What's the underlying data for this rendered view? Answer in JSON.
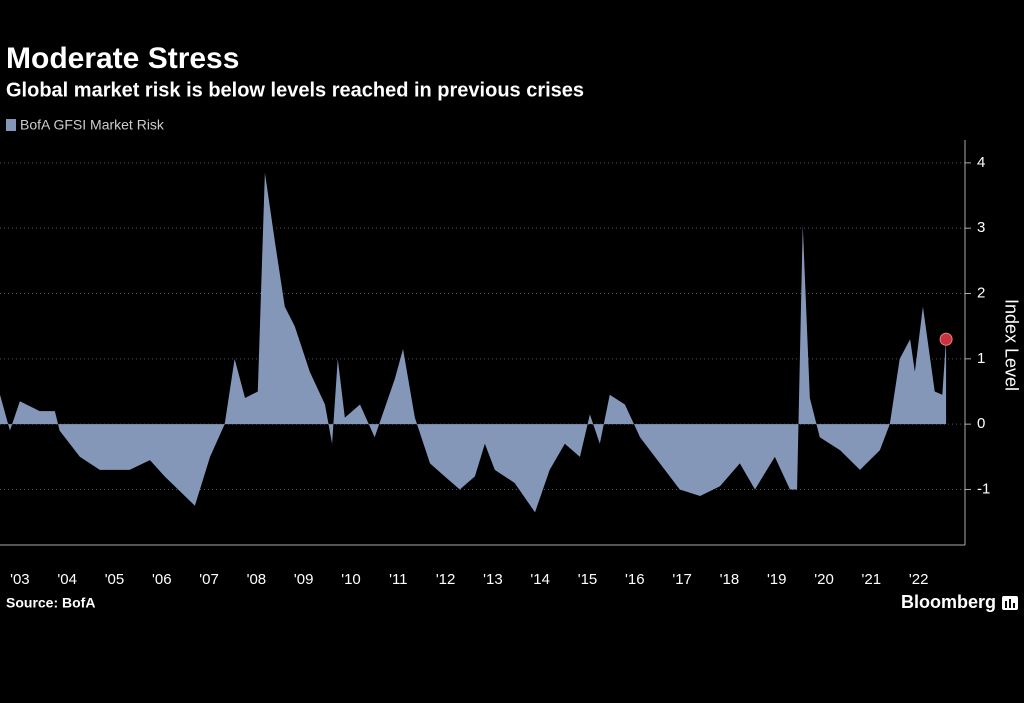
{
  "chart_data": {
    "type": "area",
    "title": "Moderate Stress",
    "subtitle": "Global market risk is below levels reached in previous crises",
    "y_label": "Index Level",
    "source": "Source: BofA",
    "brand": "Bloomberg",
    "legend": "top-left",
    "grid": true,
    "series": [
      {
        "name": "BofA GFSI Market Risk",
        "color": "#8497b8",
        "x": [
          2003.08,
          2003.29,
          2003.5,
          2003.92,
          2004.24,
          2004.34,
          2004.77,
          2005.19,
          2005.82,
          2006.25,
          2006.56,
          2007.2,
          2007.52,
          2007.83,
          2008.04,
          2008.26,
          2008.53,
          2008.68,
          2008.89,
          2009.1,
          2009.31,
          2009.63,
          2009.95,
          2010.1,
          2010.22,
          2010.37,
          2010.69,
          2011.0,
          2011.43,
          2011.6,
          2011.85,
          2012.17,
          2012.48,
          2012.8,
          2013.12,
          2013.33,
          2013.54,
          2013.96,
          2014.39,
          2014.7,
          2015.02,
          2015.34,
          2015.55,
          2015.76,
          2015.97,
          2016.29,
          2016.61,
          2017.03,
          2017.45,
          2017.88,
          2018.3,
          2018.72,
          2019.04,
          2019.46,
          2019.78,
          2019.93,
          2020.05,
          2020.2,
          2020.41,
          2020.84,
          2021.26,
          2021.68,
          2021.89,
          2022.1,
          2022.32,
          2022.42,
          2022.59,
          2022.84,
          2023.0,
          2023.08
        ],
        "values": [
          0.45,
          -0.1,
          0.35,
          0.2,
          0.2,
          -0.1,
          -0.5,
          -0.7,
          -0.7,
          -0.55,
          -0.8,
          -1.25,
          -0.5,
          0,
          1.0,
          0.4,
          0.5,
          3.85,
          2.8,
          1.8,
          1.5,
          0.8,
          0.3,
          -0.3,
          1.0,
          0.1,
          0.3,
          -0.2,
          0.7,
          1.15,
          0.1,
          -0.6,
          -0.8,
          -1.0,
          -0.8,
          -0.3,
          -0.7,
          -0.9,
          -1.35,
          -0.7,
          -0.3,
          -0.5,
          0.15,
          -0.3,
          0.45,
          0.3,
          -0.2,
          -0.6,
          -1.0,
          -1.1,
          -0.95,
          -0.6,
          -1.0,
          -0.5,
          -1.0,
          -1.0,
          3.05,
          0.4,
          -0.2,
          -0.4,
          -0.7,
          -0.4,
          0,
          1.0,
          1.3,
          0.8,
          1.8,
          0.5,
          0.45,
          1.3
        ]
      }
    ],
    "xlim": [
      2003.08,
      2023.48
    ],
    "xticks": [
      {
        "value": 2003.5,
        "label": "'03"
      },
      {
        "value": 2004.5,
        "label": "'04"
      },
      {
        "value": 2005.5,
        "label": "'05"
      },
      {
        "value": 2006.5,
        "label": "'06"
      },
      {
        "value": 2007.5,
        "label": "'07"
      },
      {
        "value": 2008.5,
        "label": "'08"
      },
      {
        "value": 2009.5,
        "label": "'09"
      },
      {
        "value": 2010.5,
        "label": "'10"
      },
      {
        "value": 2011.5,
        "label": "'11"
      },
      {
        "value": 2012.5,
        "label": "'12"
      },
      {
        "value": 2013.5,
        "label": "'13"
      },
      {
        "value": 2014.5,
        "label": "'14"
      },
      {
        "value": 2015.5,
        "label": "'15"
      },
      {
        "value": 2016.5,
        "label": "'16"
      },
      {
        "value": 2017.5,
        "label": "'17"
      },
      {
        "value": 2018.5,
        "label": "'18"
      },
      {
        "value": 2019.5,
        "label": "'19"
      },
      {
        "value": 2020.5,
        "label": "'20"
      },
      {
        "value": 2021.5,
        "label": "'21"
      },
      {
        "value": 2022.5,
        "label": "'22"
      }
    ],
    "ylim": [
      -1.85,
      4.35
    ],
    "yticks": [
      -1,
      0,
      1,
      2,
      3,
      4
    ]
  }
}
